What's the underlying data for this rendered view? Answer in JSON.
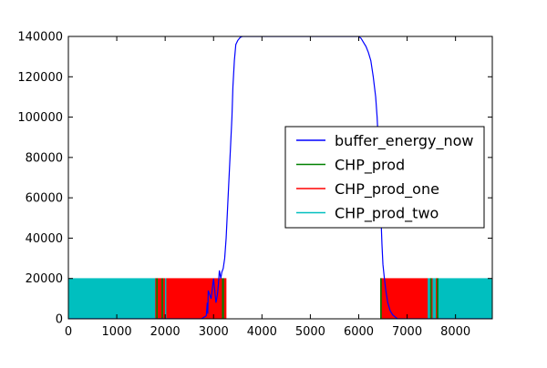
{
  "chart_data": {
    "type": "line",
    "title": "",
    "xlabel": "",
    "ylabel": "",
    "xlim": [
      0,
      8760
    ],
    "ylim": [
      0,
      140000
    ],
    "x_ticks": [
      0,
      1000,
      2000,
      3000,
      4000,
      5000,
      6000,
      7000,
      8000
    ],
    "y_ticks": [
      0,
      20000,
      40000,
      60000,
      80000,
      100000,
      120000,
      140000
    ],
    "x_tick_labels": [
      "0",
      "1000",
      "2000",
      "3000",
      "4000",
      "5000",
      "6000",
      "7000",
      "8000"
    ],
    "y_tick_labels": [
      "0",
      "20000",
      "40000",
      "60000",
      "80000",
      "100000",
      "120000",
      "140000"
    ],
    "grid": false,
    "legend_position": "right",
    "series": [
      {
        "name": "buffer_energy_now",
        "color": "#0000ff",
        "kind": "line",
        "x": [
          0,
          2750,
          2850,
          2870,
          2880,
          2890,
          2950,
          3000,
          3050,
          3080,
          3100,
          3120,
          3150,
          3170,
          3200,
          3230,
          3260,
          3290,
          3320,
          3350,
          3380,
          3400,
          3430,
          3460,
          3500,
          3550,
          3600,
          3700,
          3750,
          3800,
          4000,
          5000,
          6000,
          6050,
          6100,
          6150,
          6200,
          6250,
          6300,
          6350,
          6380,
          6400,
          6420,
          6440,
          6460,
          6480,
          6500,
          6530,
          6560,
          6600,
          6650,
          6700,
          6750,
          6800,
          8760
        ],
        "y": [
          0,
          0,
          1500,
          8000,
          2500,
          14000,
          10000,
          20000,
          8000,
          12000,
          17000,
          24000,
          20000,
          23000,
          25000,
          30000,
          40000,
          55000,
          70000,
          85000,
          100000,
          115000,
          128000,
          136000,
          138000,
          139500,
          140000,
          140000,
          140000,
          140000,
          140000,
          140000,
          140000,
          139000,
          137000,
          135000,
          132000,
          128000,
          120000,
          110000,
          100000,
          90000,
          78000,
          65000,
          50000,
          37000,
          27000,
          20000,
          14000,
          8000,
          4000,
          2000,
          1000,
          0,
          0
        ]
      },
      {
        "name": "CHP_prod",
        "color": "#008000",
        "kind": "on-off",
        "level": 20000,
        "on_segments": [
          [
            1820,
            1840
          ],
          [
            1930,
            1950
          ],
          [
            3180,
            3210
          ],
          [
            6450,
            6470
          ],
          [
            7480,
            7500
          ],
          [
            7620,
            7640
          ]
        ]
      },
      {
        "name": "CHP_prod_one",
        "color": "#ff0000",
        "kind": "on-off",
        "level": 20000,
        "on_segments": [
          [
            1800,
            1820
          ],
          [
            1840,
            1930
          ],
          [
            1950,
            1990
          ],
          [
            2030,
            3180
          ],
          [
            3210,
            3260
          ],
          [
            6450,
            7420
          ],
          [
            7500,
            7520
          ],
          [
            7600,
            7620
          ]
        ]
      },
      {
        "name": "CHP_prod_two",
        "color": "#00bfbf",
        "kind": "on-off",
        "level": 20000,
        "on_segments": [
          [
            0,
            1800
          ],
          [
            1990,
            2030
          ],
          [
            7420,
            7480
          ],
          [
            7520,
            7600
          ],
          [
            7640,
            8760
          ]
        ]
      }
    ]
  }
}
